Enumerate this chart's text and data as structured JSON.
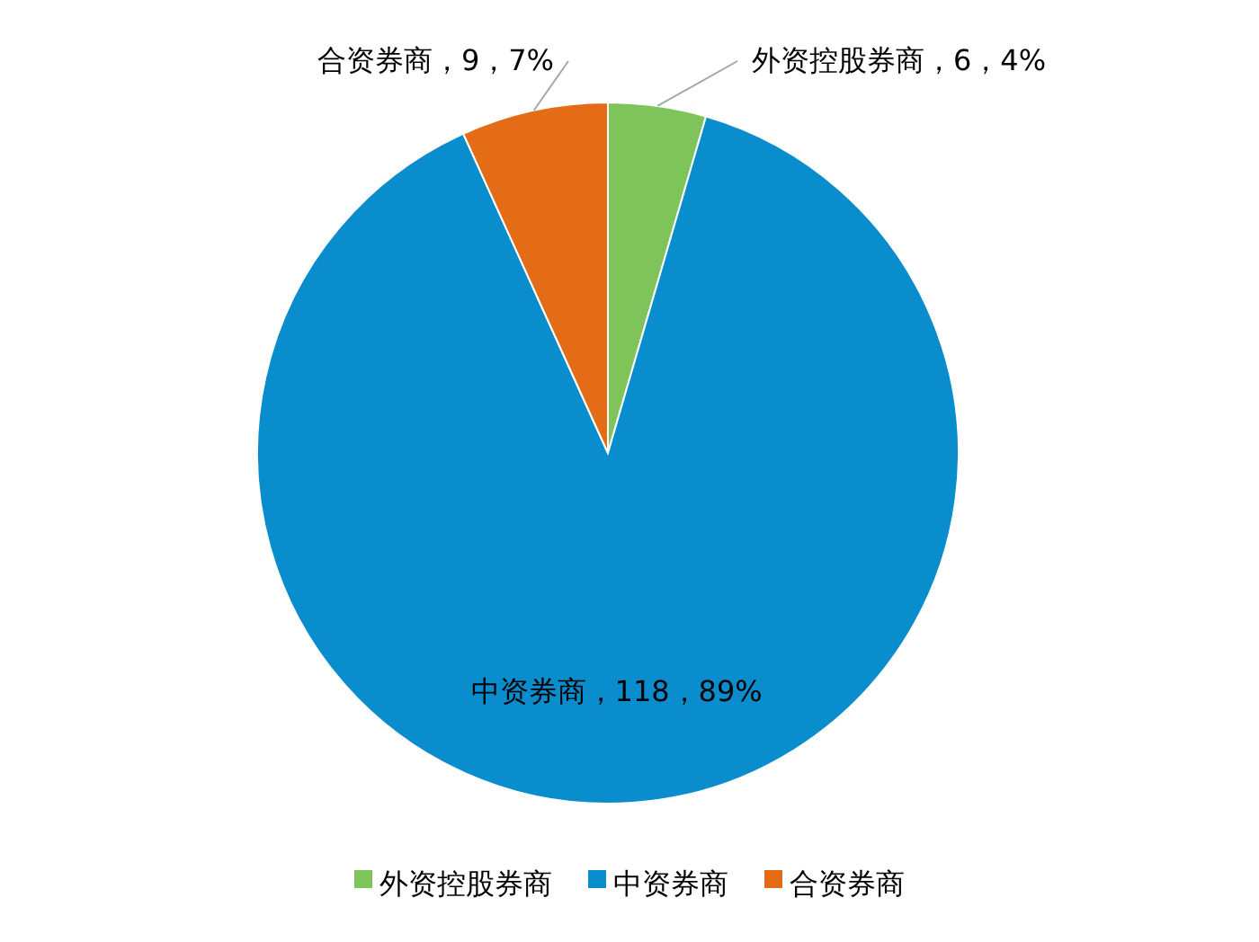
{
  "chart_data": {
    "type": "pie",
    "categories": [
      "外资控股券商",
      "中资券商",
      "合资券商"
    ],
    "values": [
      6,
      118,
      9
    ],
    "colors": [
      "#7fc45a",
      "#0a8dcc",
      "#e46c17"
    ],
    "value_labels": [
      "外资控股券商，6，4%",
      "中资券商，118，89%",
      "合资券商，9，7%"
    ],
    "legend": "bottom"
  }
}
